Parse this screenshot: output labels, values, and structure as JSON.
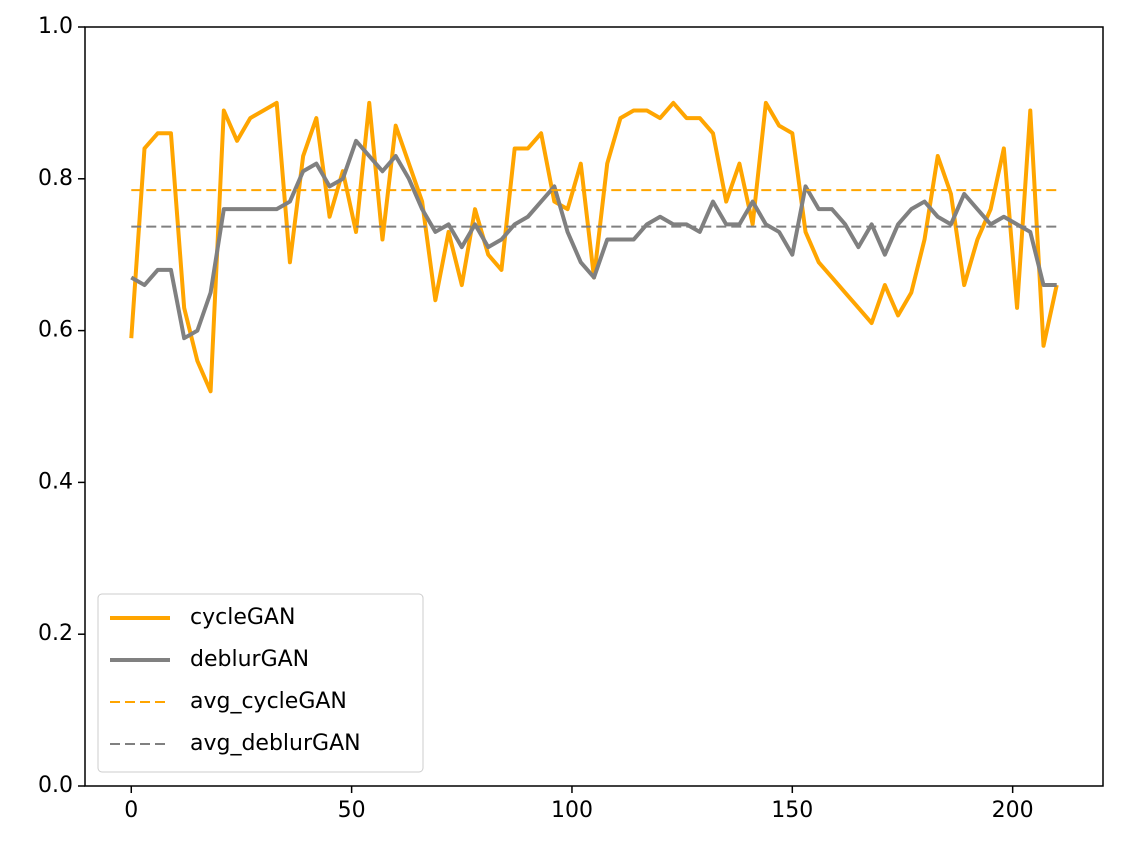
{
  "chart_data": {
    "type": "line",
    "x": [
      0,
      3,
      6,
      9,
      12,
      15,
      18,
      21,
      24,
      27,
      30,
      33,
      36,
      39,
      42,
      45,
      48,
      51,
      54,
      57,
      60,
      63,
      66,
      69,
      72,
      75,
      78,
      81,
      84,
      87,
      90,
      93,
      96,
      99,
      102,
      105,
      108,
      111,
      114,
      117,
      120,
      123,
      126,
      129,
      132,
      135,
      138,
      141,
      144,
      147,
      150,
      153,
      156,
      159,
      162,
      165,
      168,
      171,
      174,
      177,
      180,
      183,
      186,
      189,
      192,
      195,
      198,
      201,
      204,
      207,
      210
    ],
    "series": [
      {
        "name": "cycleGAN",
        "color": "#ffa500",
        "width": 4,
        "dash": false,
        "values": [
          0.59,
          0.84,
          0.86,
          0.86,
          0.63,
          0.56,
          0.52,
          0.89,
          0.85,
          0.88,
          0.89,
          0.9,
          0.69,
          0.83,
          0.88,
          0.75,
          0.81,
          0.73,
          0.9,
          0.72,
          0.87,
          0.82,
          0.77,
          0.64,
          0.73,
          0.66,
          0.76,
          0.7,
          0.68,
          0.84,
          0.84,
          0.86,
          0.77,
          0.76,
          0.82,
          0.67,
          0.82,
          0.88,
          0.89,
          0.89,
          0.88,
          0.9,
          0.88,
          0.88,
          0.86,
          0.77,
          0.82,
          0.74,
          0.9,
          0.87,
          0.86,
          0.73,
          0.69,
          0.67,
          0.65,
          0.63,
          0.61,
          0.66,
          0.62,
          0.65,
          0.72,
          0.83,
          0.78,
          0.66,
          0.72,
          0.76,
          0.84,
          0.63,
          0.89,
          0.58,
          0.66
        ]
      },
      {
        "name": "deblurGAN",
        "color": "#808080",
        "width": 4,
        "dash": false,
        "values": [
          0.67,
          0.66,
          0.68,
          0.68,
          0.59,
          0.6,
          0.65,
          0.76,
          0.76,
          0.76,
          0.76,
          0.76,
          0.77,
          0.81,
          0.82,
          0.79,
          0.8,
          0.85,
          0.83,
          0.81,
          0.83,
          0.8,
          0.76,
          0.73,
          0.74,
          0.71,
          0.74,
          0.71,
          0.72,
          0.74,
          0.75,
          0.77,
          0.79,
          0.73,
          0.69,
          0.67,
          0.72,
          0.72,
          0.72,
          0.74,
          0.75,
          0.74,
          0.74,
          0.73,
          0.77,
          0.74,
          0.74,
          0.77,
          0.74,
          0.73,
          0.7,
          0.79,
          0.76,
          0.76,
          0.74,
          0.71,
          0.74,
          0.7,
          0.74,
          0.76,
          0.77,
          0.75,
          0.74,
          0.78,
          0.76,
          0.74,
          0.75,
          0.74,
          0.73,
          0.66,
          0.66
        ]
      },
      {
        "name": "avg_cycleGAN",
        "color": "#ffa500",
        "width": 2,
        "dash": true,
        "x": [
          0,
          210
        ],
        "values": [
          0.785,
          0.785
        ]
      },
      {
        "name": "avg_deblurGAN",
        "color": "#808080",
        "width": 2,
        "dash": true,
        "x": [
          0,
          210
        ],
        "values": [
          0.737,
          0.737
        ]
      }
    ],
    "xlim": [
      -10.5,
      220.5
    ],
    "xticks": [
      0,
      50,
      100,
      150,
      200
    ],
    "ylim": [
      0,
      1
    ],
    "yticks": [
      {
        "value": 0,
        "label": "0.0"
      },
      0.2,
      0.4,
      0.6,
      0.8,
      {
        "value": 1,
        "label": "1.0"
      }
    ],
    "legend": "lower left"
  }
}
